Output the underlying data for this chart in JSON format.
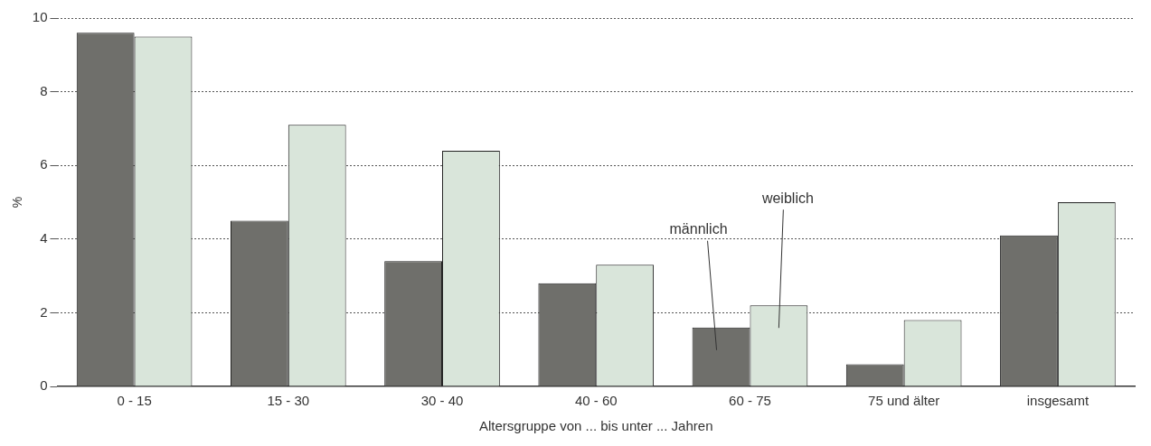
{
  "chart_data": {
    "type": "bar",
    "ylabel": "%",
    "xlabel": "Altersgruppe von ... bis unter ... Jahren",
    "categories": [
      "0 - 15",
      "15 - 30",
      "30 - 40",
      "40 - 60",
      "60 - 75",
      "75 und älter",
      "insgesamt"
    ],
    "series": [
      {
        "name": "männlich",
        "color": "#6f6f6b",
        "values": [
          9.6,
          4.5,
          3.4,
          2.8,
          1.6,
          0.6,
          4.1
        ]
      },
      {
        "name": "weiblich",
        "color": "#d9e5da",
        "values": [
          9.5,
          7.1,
          6.4,
          3.3,
          2.2,
          1.8,
          5.0
        ]
      }
    ],
    "ylim": [
      0,
      10
    ],
    "yticks": [
      0,
      2,
      4,
      6,
      8,
      10
    ],
    "grid": "y",
    "legend": false
  }
}
